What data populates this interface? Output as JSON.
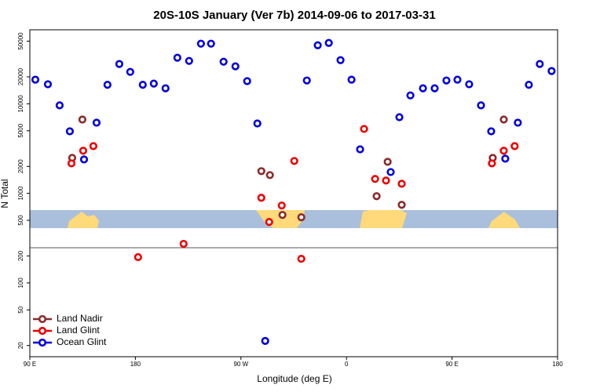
{
  "chart_data": {
    "type": "scatter",
    "title": "20S-10S January (Ver 7b)   2014-09-06 to 2017-03-31",
    "x_label": "Longitude (deg E)",
    "y_label": "N Total",
    "log_y": true,
    "legend": "bottom-left",
    "xlim": [
      90,
      540
    ],
    "xticks": [
      {
        "value": 90,
        "label": "90 E"
      },
      180,
      {
        "value": 270,
        "label": "90 W"
      },
      {
        "value": 360,
        "label": "0"
      },
      {
        "value": 450,
        "label": "90 E"
      },
      {
        "value": 540,
        "label": "180"
      }
    ],
    "ylim": [
      15,
      67000
    ],
    "yticks": [
      20,
      50,
      100,
      200,
      500,
      1000,
      2000,
      5000,
      10000,
      20000,
      50000
    ],
    "series": [
      {
        "name": "Land Nadir",
        "color": "#8b2a2a",
        "x": [
          126.1,
          134.8,
          287.4,
          294.7,
          305.4,
          321.5,
          385.7,
          395.1,
          407.1,
          484.7,
          494.1
        ],
        "values": [
          2490,
          6670,
          1770,
          1600,
          574,
          541,
          929,
          2250,
          745,
          2490,
          6670
        ]
      },
      {
        "name": "Land Glint",
        "color": "#ee0000",
        "x": [
          125.5,
          135.5,
          144.2,
          182.3,
          221.1,
          287.4,
          294.1,
          304.8,
          315.5,
          321.5,
          375.0,
          384.4,
          393.7,
          407.1,
          484.0,
          494.1,
          503.4
        ],
        "values": [
          2160,
          2990,
          3370,
          194,
          273,
          893,
          479,
          731,
          2300,
          186,
          5240,
          1450,
          1390,
          1280,
          2160,
          2990,
          3370
        ]
      },
      {
        "name": "Ocean Glint",
        "color": "#0000dd",
        "x": [
          94.7,
          105.4,
          115.4,
          124.1,
          136.2,
          146.9,
          156.2,
          166.3,
          175.6,
          186.3,
          195.7,
          205.7,
          215.8,
          225.8,
          235.9,
          244.5,
          255.2,
          265.3,
          275.3,
          284.0,
          290.7,
          326.2,
          335.5,
          344.9,
          354.9,
          364.3,
          371.6,
          397.7,
          405.1,
          414.5,
          425.2,
          435.2,
          445.2,
          454.6,
          464.6,
          474.7,
          483.4,
          495.4,
          506.1,
          515.5,
          524.8,
          534.9
        ],
        "values": [
          18600,
          16500,
          9600,
          4930,
          2390,
          6150,
          16300,
          27800,
          22700,
          16300,
          16800,
          14900,
          32700,
          30100,
          46900,
          46900,
          29500,
          26200,
          17900,
          6030,
          22.5,
          18200,
          45000,
          47800,
          30700,
          18600,
          3100,
          1730,
          7080,
          12400,
          14900,
          14900,
          18200,
          18600,
          16500,
          9600,
          4930,
          2440,
          6150,
          16300,
          27800,
          23200
        ]
      }
    ]
  }
}
